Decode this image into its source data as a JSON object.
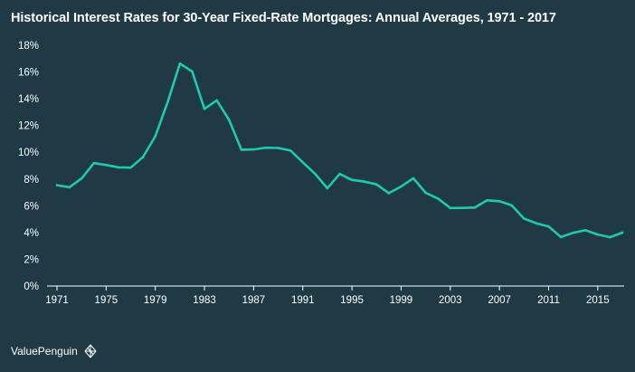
{
  "chart_data": {
    "type": "line",
    "title": "Historical Interest Rates for 30-Year Fixed-Rate Mortgages: Annual Averages, 1971 - 2017",
    "xlabel": "",
    "ylabel": "",
    "xlim": [
      1971,
      2017
    ],
    "ylim": [
      0,
      18
    ],
    "y_ticks": [
      0,
      2,
      4,
      6,
      8,
      10,
      12,
      14,
      16,
      18
    ],
    "y_tick_labels": [
      "0%",
      "2%",
      "4%",
      "6%",
      "8%",
      "10%",
      "12%",
      "14%",
      "16%",
      "18%"
    ],
    "x_ticks": [
      1971,
      1975,
      1979,
      1983,
      1987,
      1991,
      1995,
      1999,
      2003,
      2007,
      2011,
      2015
    ],
    "x_tick_labels": [
      "1971",
      "1975",
      "1979",
      "1983",
      "1987",
      "1991",
      "1995",
      "1999",
      "2003",
      "2007",
      "2011",
      "2015"
    ],
    "grid": false,
    "legend": "none",
    "series": [
      {
        "x": [
          1971,
          1972,
          1973,
          1974,
          1975,
          1976,
          1977,
          1978,
          1979,
          1980,
          1981,
          1982,
          1983,
          1984,
          1985,
          1986,
          1987,
          1988,
          1989,
          1990,
          1991,
          1992,
          1993,
          1994,
          1995,
          1996,
          1997,
          1998,
          1999,
          2000,
          2001,
          2002,
          2003,
          2004,
          2005,
          2006,
          2007,
          2008,
          2009,
          2010,
          2011,
          2012,
          2013,
          2014,
          2015,
          2016,
          2017
        ],
        "values": [
          7.54,
          7.38,
          8.04,
          9.19,
          9.05,
          8.87,
          8.85,
          9.64,
          11.2,
          13.74,
          16.63,
          16.04,
          13.24,
          13.88,
          12.43,
          10.19,
          10.21,
          10.34,
          10.32,
          10.13,
          9.25,
          8.39,
          7.31,
          8.38,
          7.93,
          7.81,
          7.6,
          6.94,
          7.44,
          8.05,
          6.97,
          6.54,
          5.83,
          5.84,
          5.87,
          6.41,
          6.34,
          6.03,
          5.04,
          4.69,
          4.45,
          3.66,
          3.98,
          4.17,
          3.85,
          3.65,
          3.99
        ]
      }
    ],
    "colors": {
      "background": "#1f3a45",
      "line": "#1ec9b2",
      "axis": "#ffffff",
      "text": "#ffffff"
    }
  },
  "brand": {
    "name": "ValuePenguin",
    "logo_icon": "penguin-logo-icon"
  }
}
